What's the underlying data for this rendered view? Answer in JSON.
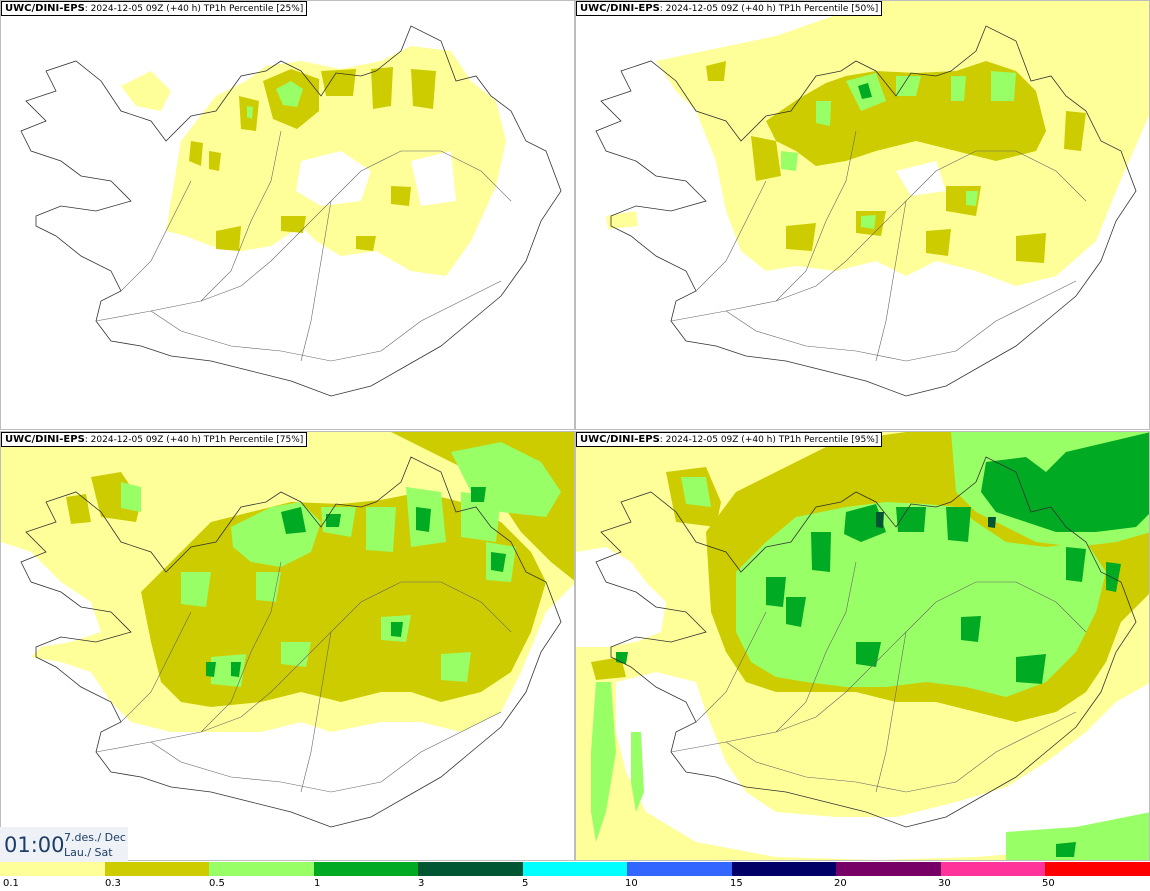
{
  "panels": [
    {
      "model": "UWC/DINI-EPS",
      "run": ": 2024-12-05 09Z (+40 h) ",
      "param": "TP1h Percentile [25%]"
    },
    {
      "model": "UWC/DINI-EPS",
      "run": ": 2024-12-05 09Z (+40 h) ",
      "param": "TP1h Percentile [50%]"
    },
    {
      "model": "UWC/DINI-EPS",
      "run": ": 2024-12-05 09Z (+40 h) ",
      "param": "TP1h Percentile [75%]"
    },
    {
      "model": "UWC/DINI-EPS",
      "run": ": 2024-12-05 09Z (+40 h) ",
      "param": "TP1h Percentile [95%]"
    }
  ],
  "clock": {
    "time": "01:00",
    "date_line1": "7.des./ Dec",
    "date_line2": "Lau./ Sat"
  },
  "legend": {
    "labels": [
      "0.1",
      "0.3",
      "0.5",
      "1",
      "3",
      "5",
      "10",
      "15",
      "20",
      "30",
      "50"
    ],
    "colors": [
      "#ffff99",
      "#cccc00",
      "#99ff66",
      "#00aa22",
      "#005533",
      "#00ffff",
      "#3366ff",
      "#000066",
      "#770066",
      "#ff3399",
      "#ff0000"
    ]
  },
  "map_colors": {
    "coast": "#333333",
    "roads": "#666666",
    "level1": "#ffff99",
    "level2": "#cccc00",
    "level3": "#99ff66",
    "level4": "#00aa22"
  }
}
